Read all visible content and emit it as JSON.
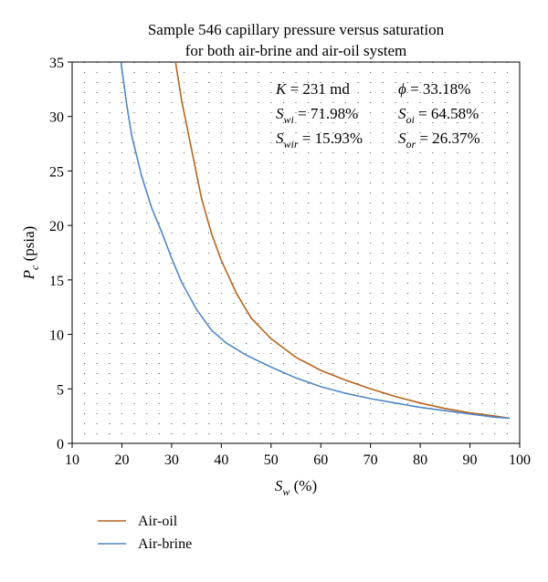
{
  "chart_data": {
    "type": "line",
    "title": "Sample 546 capillary pressure versus saturation",
    "subtitle": "for both air-brine and air-oil system",
    "xlabel": {
      "main": "S",
      "sub": "w",
      "unit": " (%)"
    },
    "ylabel": {
      "main": "P",
      "sub": "c",
      "unit": " (psia)"
    },
    "xlim": [
      10,
      100
    ],
    "ylim": [
      0,
      35
    ],
    "xticks": [
      10,
      20,
      30,
      40,
      50,
      60,
      70,
      80,
      90,
      100
    ],
    "yticks": [
      0,
      5,
      10,
      15,
      20,
      25,
      30,
      35
    ],
    "grid": "dotted",
    "legend_position": "bottom-left",
    "annotations": [
      {
        "main": "K",
        "sub": "",
        "value": " = 231 md",
        "col": 0,
        "row": 0
      },
      {
        "main": "ϕ",
        "sub": "",
        "value": " = 33.18%",
        "col": 1,
        "row": 0
      },
      {
        "main": "S",
        "sub": "wi",
        "value": " = 71.98%",
        "col": 0,
        "row": 1
      },
      {
        "main": "S",
        "sub": "oi",
        "value": " = 64.58%",
        "col": 1,
        "row": 1
      },
      {
        "main": "S",
        "sub": "wir",
        "value": " = 15.93%",
        "col": 0,
        "row": 2
      },
      {
        "main": "S",
        "sub": "or",
        "value": " = 26.37%",
        "col": 1,
        "row": 2
      }
    ],
    "series": [
      {
        "name": "Air-oil",
        "color": "#b5651d",
        "x": [
          30.8,
          32,
          34,
          36,
          38,
          40,
          43,
          46,
          50,
          55,
          60,
          65,
          70,
          75,
          80,
          85,
          90,
          95,
          98
        ],
        "y": [
          35,
          31.5,
          27,
          22.5,
          19.3,
          16.8,
          13.8,
          11.5,
          9.6,
          7.9,
          6.7,
          5.8,
          5.0,
          4.3,
          3.7,
          3.2,
          2.8,
          2.5,
          2.3
        ]
      },
      {
        "name": "Air-brine",
        "color": "#4f86c6",
        "x": [
          19.8,
          21,
          22,
          24,
          26,
          28,
          30,
          32,
          35,
          38,
          41,
          45,
          50,
          55,
          60,
          65,
          70,
          75,
          80,
          85,
          90,
          95,
          98
        ],
        "y": [
          35,
          31,
          28.2,
          24.5,
          21.6,
          19.4,
          17.0,
          14.8,
          12.3,
          10.4,
          9.2,
          8.1,
          7.0,
          6.0,
          5.2,
          4.6,
          4.1,
          3.7,
          3.3,
          3.0,
          2.7,
          2.4,
          2.3
        ]
      }
    ]
  }
}
